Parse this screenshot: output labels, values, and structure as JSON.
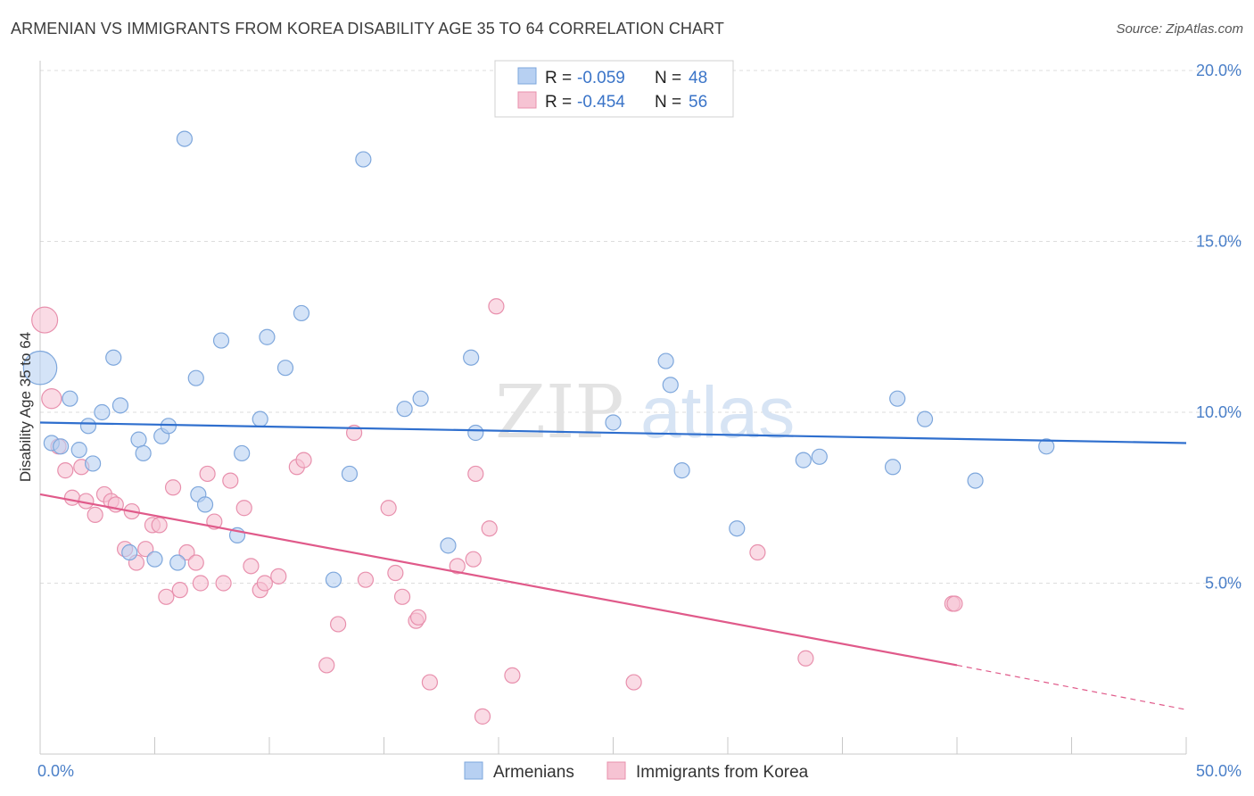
{
  "title": "ARMENIAN VS IMMIGRANTS FROM KOREA DISABILITY AGE 35 TO 64 CORRELATION CHART",
  "source": "Source: ZipAtlas.com",
  "watermark": {
    "zip": "ZIP",
    "atlas": "atlas"
  },
  "colors": {
    "blue_fill": "#b7d0f2",
    "blue_stroke": "#7ea7dc",
    "blue_line": "#2f6fce",
    "pink_fill": "#f6c3d3",
    "pink_stroke": "#e890ad",
    "pink_line": "#e05a8a",
    "grid": "#dcdcdc",
    "tick_text": "#4a7fc8"
  },
  "legend": {
    "row1": {
      "r_label": "R = ",
      "r_value": "-0.059",
      "n_label": "N = ",
      "n_value": "48"
    },
    "row2": {
      "r_label": "R = ",
      "r_value": "-0.454",
      "n_label": "N = ",
      "n_value": "56"
    }
  },
  "bottom_legend": [
    "Armenians",
    "Immigrants from Korea"
  ],
  "chart_data": {
    "type": "scatter",
    "title": "ARMENIAN VS IMMIGRANTS FROM KOREA DISABILITY AGE 35 TO 64 CORRELATION CHART",
    "xlabel": "",
    "ylabel": "Disability Age 35 to 64",
    "xlim": [
      0,
      50
    ],
    "ylim": [
      0,
      20
    ],
    "x_tick_labels": [
      "0.0%",
      "50.0%"
    ],
    "y_ticks": [
      5,
      10,
      15,
      20
    ],
    "y_tick_labels": [
      "5.0%",
      "10.0%",
      "15.0%",
      "20.0%"
    ],
    "series": [
      {
        "name": "Armenians",
        "r": -0.059,
        "n": 48,
        "trend": {
          "x0": 0,
          "y0": 9.7,
          "x1": 50,
          "y1": 9.1
        },
        "points": [
          {
            "x": 0.0,
            "y": 11.3,
            "s": 2.2
          },
          {
            "x": 0.5,
            "y": 9.1
          },
          {
            "x": 0.9,
            "y": 9.0
          },
          {
            "x": 1.3,
            "y": 10.4
          },
          {
            "x": 1.7,
            "y": 8.9
          },
          {
            "x": 2.1,
            "y": 9.6
          },
          {
            "x": 2.3,
            "y": 8.5
          },
          {
            "x": 2.7,
            "y": 10.0
          },
          {
            "x": 3.2,
            "y": 11.6
          },
          {
            "x": 3.5,
            "y": 10.2
          },
          {
            "x": 3.9,
            "y": 5.9
          },
          {
            "x": 4.3,
            "y": 9.2
          },
          {
            "x": 4.5,
            "y": 8.8
          },
          {
            "x": 5.0,
            "y": 5.7
          },
          {
            "x": 5.3,
            "y": 9.3
          },
          {
            "x": 5.6,
            "y": 9.6
          },
          {
            "x": 6.0,
            "y": 5.6
          },
          {
            "x": 6.3,
            "y": 18.0
          },
          {
            "x": 6.8,
            "y": 11.0
          },
          {
            "x": 6.9,
            "y": 7.6
          },
          {
            "x": 7.2,
            "y": 7.3
          },
          {
            "x": 7.9,
            "y": 12.1
          },
          {
            "x": 8.6,
            "y": 6.4
          },
          {
            "x": 8.8,
            "y": 8.8
          },
          {
            "x": 9.6,
            "y": 9.8
          },
          {
            "x": 9.9,
            "y": 12.2
          },
          {
            "x": 10.7,
            "y": 11.3
          },
          {
            "x": 11.4,
            "y": 12.9
          },
          {
            "x": 12.8,
            "y": 5.1
          },
          {
            "x": 13.5,
            "y": 8.2
          },
          {
            "x": 14.1,
            "y": 17.4
          },
          {
            "x": 15.9,
            "y": 10.1
          },
          {
            "x": 16.6,
            "y": 10.4
          },
          {
            "x": 17.8,
            "y": 6.1
          },
          {
            "x": 18.8,
            "y": 11.6
          },
          {
            "x": 19.0,
            "y": 9.4
          },
          {
            "x": 25.0,
            "y": 9.7
          },
          {
            "x": 27.3,
            "y": 11.5
          },
          {
            "x": 27.5,
            "y": 10.8
          },
          {
            "x": 28.0,
            "y": 8.3
          },
          {
            "x": 30.4,
            "y": 6.6
          },
          {
            "x": 33.3,
            "y": 8.6
          },
          {
            "x": 34.0,
            "y": 8.7
          },
          {
            "x": 37.2,
            "y": 8.4
          },
          {
            "x": 37.4,
            "y": 10.4
          },
          {
            "x": 38.6,
            "y": 9.8
          },
          {
            "x": 40.8,
            "y": 8.0
          },
          {
            "x": 43.9,
            "y": 9.0
          }
        ]
      },
      {
        "name": "Immigrants from Korea",
        "r": -0.454,
        "n": 56,
        "trend": {
          "x0": 0,
          "y0": 7.6,
          "x1": 40.0,
          "y1": 2.6,
          "dash_x1": 50,
          "dash_y1": 1.3
        },
        "points": [
          {
            "x": 0.2,
            "y": 12.7,
            "s": 1.7
          },
          {
            "x": 0.5,
            "y": 10.4,
            "s": 1.3
          },
          {
            "x": 0.8,
            "y": 9.0
          },
          {
            "x": 1.1,
            "y": 8.3
          },
          {
            "x": 1.4,
            "y": 7.5
          },
          {
            "x": 1.8,
            "y": 8.4
          },
          {
            "x": 2.0,
            "y": 7.4
          },
          {
            "x": 2.4,
            "y": 7.0
          },
          {
            "x": 2.8,
            "y": 7.6
          },
          {
            "x": 3.1,
            "y": 7.4
          },
          {
            "x": 3.3,
            "y": 7.3
          },
          {
            "x": 3.7,
            "y": 6.0
          },
          {
            "x": 4.0,
            "y": 7.1
          },
          {
            "x": 4.2,
            "y": 5.6
          },
          {
            "x": 4.6,
            "y": 6.0
          },
          {
            "x": 4.9,
            "y": 6.7
          },
          {
            "x": 5.2,
            "y": 6.7
          },
          {
            "x": 5.5,
            "y": 4.6
          },
          {
            "x": 5.8,
            "y": 7.8
          },
          {
            "x": 6.1,
            "y": 4.8
          },
          {
            "x": 6.4,
            "y": 5.9
          },
          {
            "x": 6.8,
            "y": 5.6
          },
          {
            "x": 7.0,
            "y": 5.0
          },
          {
            "x": 7.3,
            "y": 8.2
          },
          {
            "x": 7.6,
            "y": 6.8
          },
          {
            "x": 8.0,
            "y": 5.0
          },
          {
            "x": 8.3,
            "y": 8.0
          },
          {
            "x": 8.9,
            "y": 7.2
          },
          {
            "x": 9.2,
            "y": 5.5
          },
          {
            "x": 9.6,
            "y": 4.8
          },
          {
            "x": 9.8,
            "y": 5.0
          },
          {
            "x": 10.4,
            "y": 5.2
          },
          {
            "x": 11.2,
            "y": 8.4
          },
          {
            "x": 11.5,
            "y": 8.6
          },
          {
            "x": 12.5,
            "y": 2.6
          },
          {
            "x": 13.0,
            "y": 3.8
          },
          {
            "x": 13.7,
            "y": 9.4
          },
          {
            "x": 14.2,
            "y": 5.1
          },
          {
            "x": 15.2,
            "y": 7.2
          },
          {
            "x": 15.5,
            "y": 5.3
          },
          {
            "x": 15.8,
            "y": 4.6
          },
          {
            "x": 16.4,
            "y": 3.9
          },
          {
            "x": 16.5,
            "y": 4.0
          },
          {
            "x": 17.0,
            "y": 2.1
          },
          {
            "x": 18.2,
            "y": 5.5
          },
          {
            "x": 18.9,
            "y": 5.7
          },
          {
            "x": 19.0,
            "y": 8.2
          },
          {
            "x": 19.3,
            "y": 1.1
          },
          {
            "x": 19.6,
            "y": 6.6
          },
          {
            "x": 19.9,
            "y": 13.1
          },
          {
            "x": 20.6,
            "y": 2.3
          },
          {
            "x": 25.9,
            "y": 2.1
          },
          {
            "x": 31.3,
            "y": 5.9
          },
          {
            "x": 33.4,
            "y": 2.8
          },
          {
            "x": 39.8,
            "y": 4.4
          },
          {
            "x": 39.9,
            "y": 4.4
          }
        ]
      }
    ]
  }
}
